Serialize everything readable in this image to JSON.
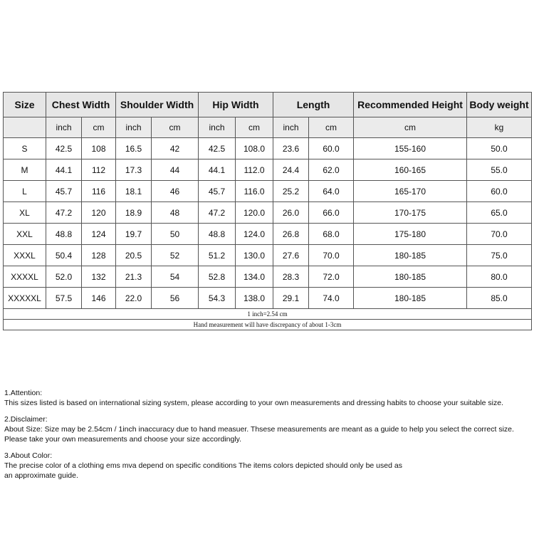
{
  "table": {
    "headers": [
      "Size",
      "Chest Width",
      "Shoulder Width",
      "Hip Width",
      "Length",
      "Recommended Height",
      "Body weight"
    ],
    "subheaders": [
      "inch",
      "cm",
      "inch",
      "cm",
      "inch",
      "cm",
      "inch",
      "cm",
      "cm",
      "kg"
    ],
    "rows": [
      [
        "S",
        "42.5",
        "108",
        "16.5",
        "42",
        "42.5",
        "108.0",
        "23.6",
        "60.0",
        "155-160",
        "50.0"
      ],
      [
        "M",
        "44.1",
        "112",
        "17.3",
        "44",
        "44.1",
        "112.0",
        "24.4",
        "62.0",
        "160-165",
        "55.0"
      ],
      [
        "L",
        "45.7",
        "116",
        "18.1",
        "46",
        "45.7",
        "116.0",
        "25.2",
        "64.0",
        "165-170",
        "60.0"
      ],
      [
        "XL",
        "47.2",
        "120",
        "18.9",
        "48",
        "47.2",
        "120.0",
        "26.0",
        "66.0",
        "170-175",
        "65.0"
      ],
      [
        "XXL",
        "48.8",
        "124",
        "19.7",
        "50",
        "48.8",
        "124.0",
        "26.8",
        "68.0",
        "175-180",
        "70.0"
      ],
      [
        "XXXL",
        "50.4",
        "128",
        "20.5",
        "52",
        "51.2",
        "130.0",
        "27.6",
        "70.0",
        "180-185",
        "75.0"
      ],
      [
        "XXXXL",
        "52.0",
        "132",
        "21.3",
        "54",
        "52.8",
        "134.0",
        "28.3",
        "72.0",
        "180-185",
        "80.0"
      ],
      [
        "XXXXXL",
        "57.5",
        "146",
        "22.0",
        "56",
        "54.3",
        "138.0",
        "29.1",
        "74.0",
        "180-185",
        "85.0"
      ]
    ],
    "footnotes": [
      "1 inch=2.54 cm",
      "Hand measurement will have discrepancy of about 1-3cm"
    ]
  },
  "notes": [
    {
      "heading": "1.Attention:",
      "lines": [
        "This sizes listed is based on international sizing system, please according to your own measurements and dressing habits to choose your suitable size."
      ]
    },
    {
      "heading": "2.Disclaimer:",
      "lines": [
        "About Size: Size may be 2.54cm / 1inch inaccuracy due to hand measuer. Thsese measurements are meant as a guide to help you select the correct size.",
        "Please take your own measurements and choose your size accordingly."
      ]
    },
    {
      "heading": "3.About Color:",
      "lines": [
        "The precise color of a clothing ems mva depend on specific conditions The items colors depicted should only be used as",
        "an approximate guide."
      ]
    }
  ]
}
